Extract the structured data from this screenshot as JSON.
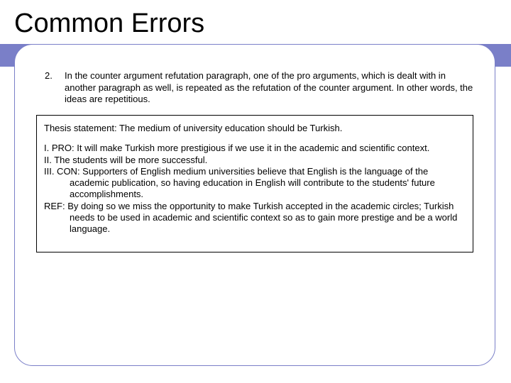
{
  "colors": {
    "band": "#7a7fc8",
    "frame_border": "#7a7fc8",
    "text": "#000000",
    "background": "#ffffff"
  },
  "title": "Common Errors",
  "item_number": "2.",
  "item_text": "In the counter argument refutation paragraph, one of the pro arguments, which is dealt with in another paragraph as well, is repeated as the refutation of the counter argument. In other words, the ideas are repetitious.",
  "thesis": "Thesis statement: The medium of university education should be Turkish.",
  "points": {
    "p1": "I. PRO: It will make Turkish more prestigious if we use it in the academic and scientific context.",
    "p2": "II. The students will be more successful.",
    "p3": "III. CON: Supporters of English medium universities believe that English is the language of the academic publication, so having education in English will contribute to the students' future accomplishments.",
    "p4": "REF: By doing so we miss the opportunity to make Turkish accepted in the academic circles; Turkish needs to be used in academic and scientific context so as to gain more prestige and be a world language."
  }
}
